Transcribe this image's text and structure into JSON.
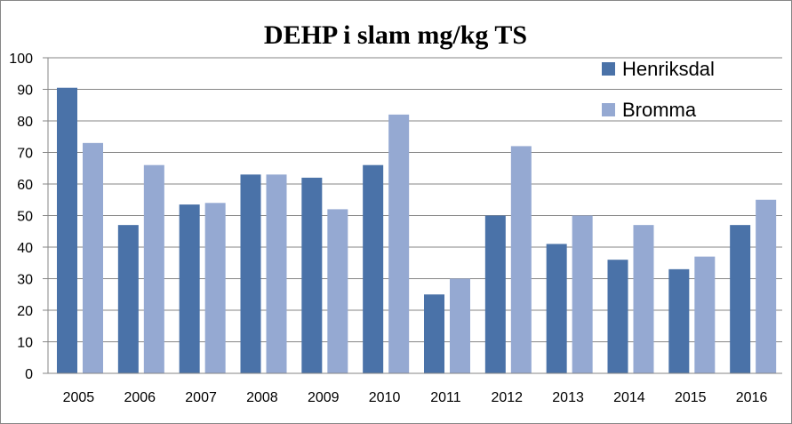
{
  "chart_data": {
    "type": "bar",
    "title": "DEHP i slam mg/kg TS",
    "xlabel": "",
    "ylabel": "",
    "ylim": [
      0,
      100
    ],
    "yticks": [
      "0",
      "10",
      "20",
      "30",
      "40",
      "50",
      "60",
      "70",
      "80",
      "90",
      "100"
    ],
    "grid": true,
    "legend_position": "top-right",
    "categories": [
      "2005",
      "2006",
      "2007",
      "2008",
      "2009",
      "2010",
      "2011",
      "2012",
      "2013",
      "2014",
      "2015",
      "2016"
    ],
    "series": [
      {
        "name": "Henriksdal",
        "color": "#4A72A8",
        "values": [
          90.5,
          47,
          53.5,
          63,
          62,
          66,
          25,
          50,
          41,
          36,
          33,
          47
        ]
      },
      {
        "name": "Bromma",
        "color": "#95A9D2",
        "values": [
          73,
          66,
          54,
          63,
          52,
          82,
          30,
          72,
          50,
          47,
          37,
          55
        ]
      }
    ]
  }
}
